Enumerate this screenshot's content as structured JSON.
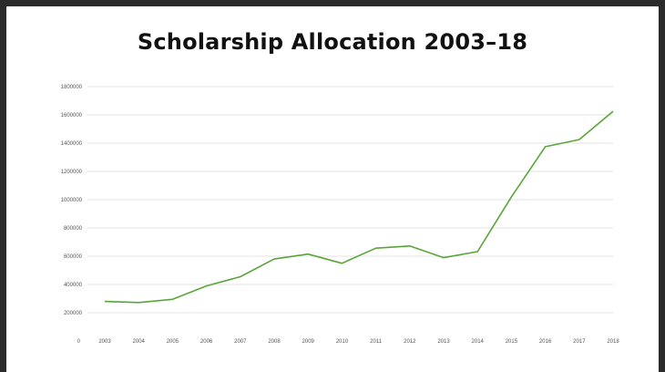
{
  "chart_data": {
    "type": "line",
    "title": "Scholarship Allocation 2003–18",
    "xlabel": "",
    "ylabel": "",
    "categories": [
      "2003",
      "2004",
      "2005",
      "2006",
      "2007",
      "2008",
      "2009",
      "2010",
      "2011",
      "2012",
      "2013",
      "2014",
      "2015",
      "2016",
      "2017",
      "2018"
    ],
    "series": [
      {
        "values": [
          280000,
          272000,
          295000,
          390000,
          455000,
          580000,
          615000,
          550000,
          657000,
          672000,
          590000,
          632000,
          1020000,
          1375000,
          1425000,
          1625000
        ]
      }
    ],
    "ylim": [
      0,
      1800000
    ],
    "yticks": [
      "0",
      "200000",
      "400000",
      "600000",
      "800000",
      "1000000",
      "1200000",
      "1400000",
      "1600000",
      "1800000"
    ],
    "grid": true,
    "legend": "none",
    "line_color": "#5aa53a"
  }
}
